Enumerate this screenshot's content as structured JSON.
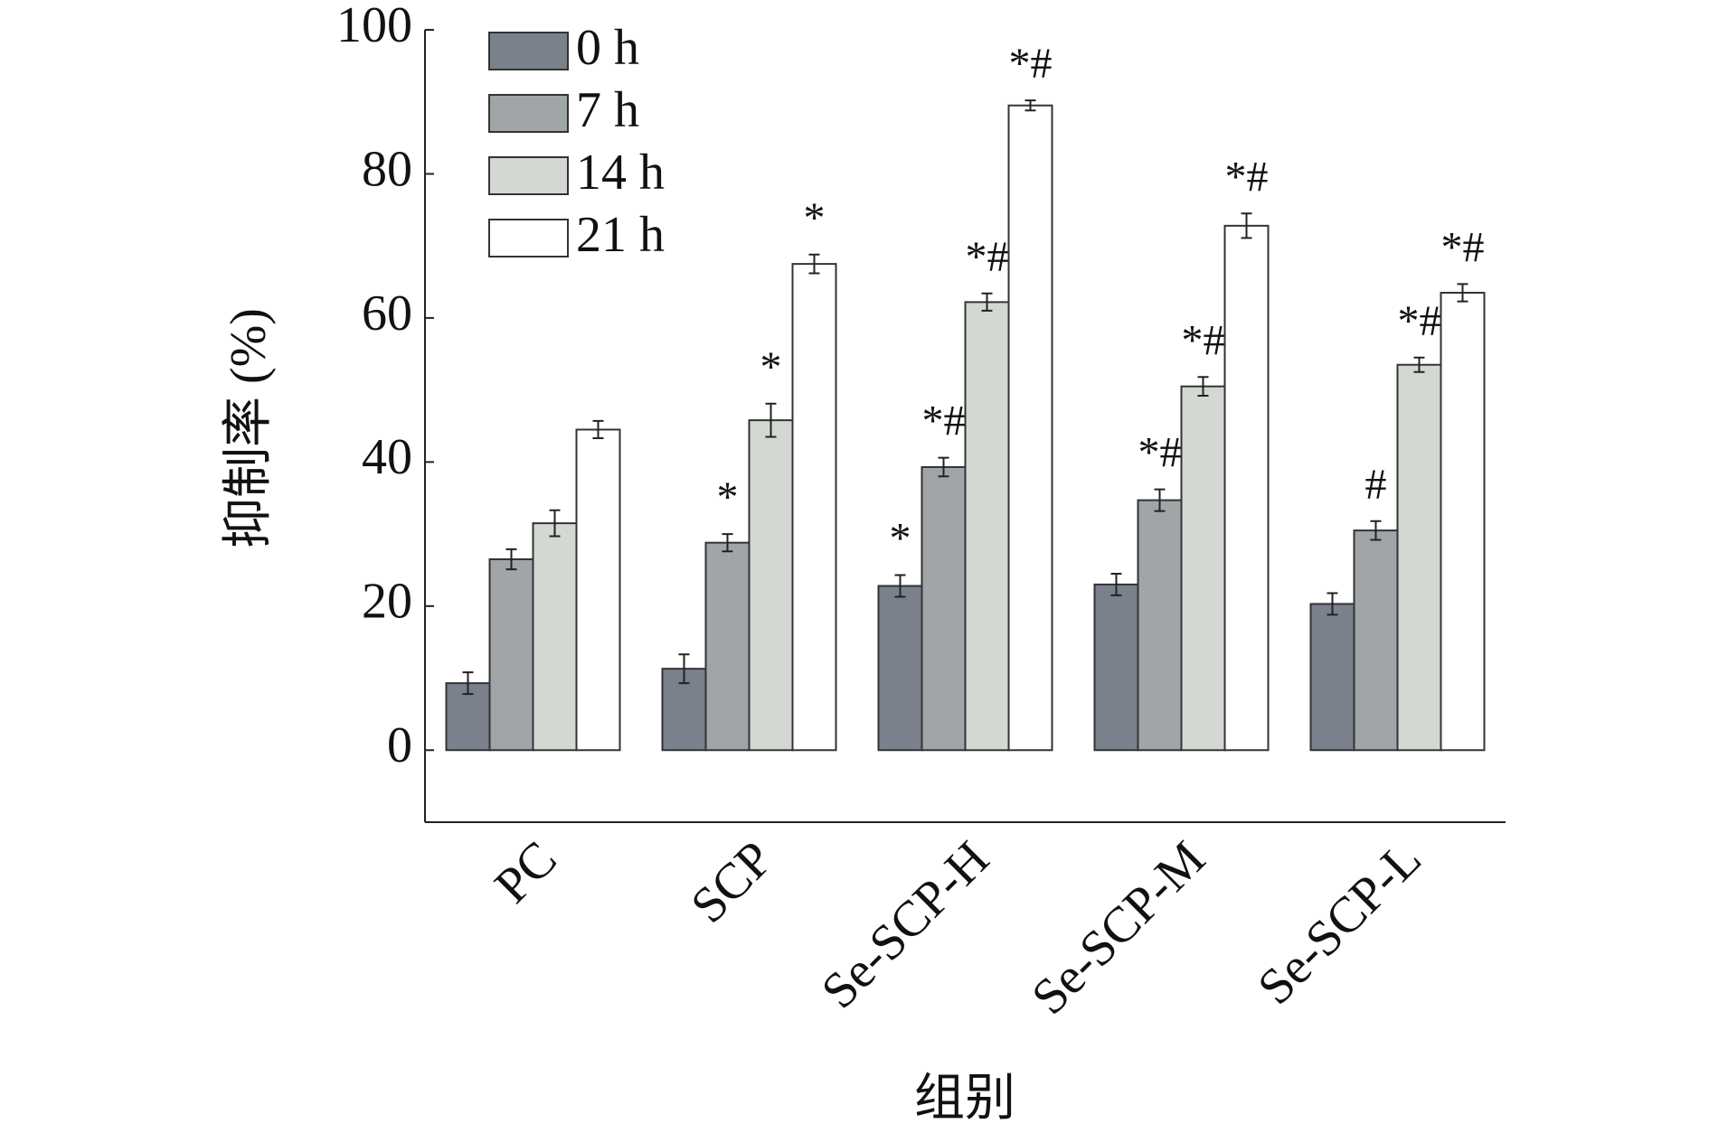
{
  "chart_data": {
    "type": "bar",
    "x_label": "组别",
    "y_label": "抑制率 (%)",
    "categories": [
      "PC",
      "SCP",
      "Se-SCP-H",
      "Se-SCP-M",
      "Se-SCP-L"
    ],
    "series": [
      {
        "name": "0 h",
        "color": "#7a808c",
        "values": [
          9.3,
          11.3,
          22.8,
          23.0,
          20.3
        ],
        "errors": [
          1.5,
          2.0,
          1.5,
          1.5,
          1.5
        ],
        "annotations": [
          null,
          null,
          "*",
          null,
          null
        ]
      },
      {
        "name": "7 h",
        "color": "#a0a5a8",
        "values": [
          26.5,
          28.8,
          39.3,
          34.7,
          30.5
        ],
        "errors": [
          1.4,
          1.2,
          1.3,
          1.5,
          1.3
        ],
        "annotations": [
          null,
          "*",
          "*#",
          "*#",
          "#"
        ]
      },
      {
        "name": "14 h",
        "color": "#d3d8d3",
        "values": [
          31.5,
          45.8,
          62.2,
          50.5,
          53.5
        ],
        "errors": [
          1.8,
          2.3,
          1.2,
          1.3,
          1.0
        ],
        "annotations": [
          null,
          "*",
          "*#",
          "*#",
          "*#"
        ]
      },
      {
        "name": "21 h",
        "color": "#ffffff",
        "values": [
          44.5,
          67.5,
          89.5,
          72.8,
          63.5
        ],
        "errors": [
          1.2,
          1.3,
          0.7,
          1.7,
          1.2
        ],
        "annotations": [
          null,
          "*",
          "*#",
          "*#",
          "*#"
        ]
      }
    ],
    "ylim": [
      -10,
      100
    ],
    "yticks": [
      0,
      20,
      40,
      60,
      80,
      100
    ],
    "legend": "upper-left",
    "grid": false
  }
}
